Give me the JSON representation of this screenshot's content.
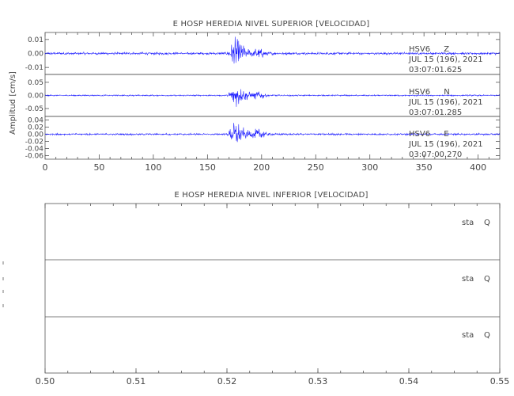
{
  "chart_data": [
    {
      "type": "line",
      "title": "E HOSP HEREDIA NIVEL SUPERIOR [VELOCIDAD]",
      "ylabel": "Amplitud [cm/s]",
      "xlabel": "",
      "xlim": [
        0,
        420
      ],
      "xticks": [
        "0",
        "50",
        "100",
        "150",
        "200",
        "250",
        "300",
        "350",
        "400"
      ],
      "series": [
        {
          "name": "HSV6 Z",
          "station": "HSV6",
          "component": "Z",
          "date": "JUL 15 (196), 2021",
          "time": "03:07:01.625",
          "ylim": [
            -0.015,
            0.015
          ],
          "yticks": [
            "0.01",
            "0.00",
            "-0.01"
          ],
          "noise_amplitude": 0.001,
          "event_start": 168,
          "event_peak": 176,
          "event_peak_amplitude": 0.012,
          "secondary_burst": 198,
          "secondary_amplitude": 0.003
        },
        {
          "name": "HSV6 N",
          "station": "HSV6",
          "component": "N",
          "date": "JUL 15 (196), 2021",
          "time": "03:07:01.285",
          "ylim": [
            -0.08,
            0.08
          ],
          "yticks": [
            "0.05",
            "0.00",
            "-0.05"
          ],
          "noise_amplitude": 0.003,
          "event_start": 168,
          "event_peak": 176,
          "event_peak_amplitude": 0.05,
          "secondary_burst": 198,
          "secondary_amplitude": 0.015
        },
        {
          "name": "HSV6 E",
          "station": "HSV6",
          "component": "E",
          "date": "JUL 15 (196), 2021",
          "time": "03:07:00.270",
          "ylim": [
            -0.07,
            0.05
          ],
          "yticks": [
            "0.04",
            "0.02",
            "0.00",
            "-0.02",
            "-0.04",
            "-0.06"
          ],
          "noise_amplitude": 0.003,
          "event_start": 168,
          "event_peak": 176,
          "event_peak_amplitude": 0.04,
          "secondary_burst": 198,
          "secondary_amplitude": 0.018
        }
      ]
    },
    {
      "type": "line",
      "title": "E HOSP HEREDIA NIVEL INFERIOR [VELOCIDAD]",
      "ylabel": "",
      "xlabel": "",
      "xlim": [
        0.5,
        0.55
      ],
      "xticks": [
        "0.50",
        "0.51",
        "0.52",
        "0.53",
        "0.54",
        "0.55"
      ],
      "series": [
        {
          "name": "sta Q",
          "station": "sta",
          "component": "Q",
          "values": []
        },
        {
          "name": "sta Q",
          "station": "sta",
          "component": "Q",
          "values": []
        },
        {
          "name": "sta Q",
          "station": "sta",
          "component": "Q",
          "values": []
        }
      ]
    }
  ],
  "colors": {
    "trace": "#1a1aff",
    "axis": "#555555",
    "text": "#444444"
  }
}
